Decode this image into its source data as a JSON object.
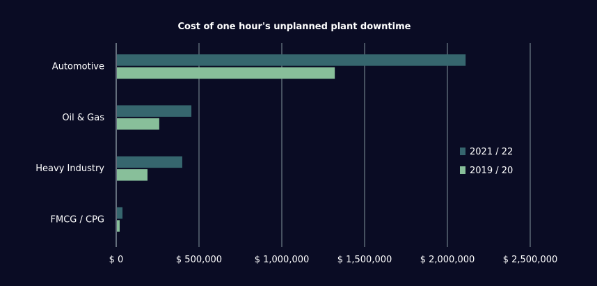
{
  "chart_data": {
    "type": "bar",
    "orientation": "horizontal",
    "title": "Cost of one hour's unplanned plant downtime",
    "categories": [
      "Automotive",
      "Oil & Gas",
      "Heavy Industry",
      "FMCG / CPG"
    ],
    "series": [
      {
        "name": "2021 / 22",
        "color": "#36666e",
        "values": [
          2110000,
          454000,
          399000,
          38000
        ]
      },
      {
        "name": "2019 / 20",
        "color": "#88bf9a",
        "values": [
          1320000,
          260000,
          189000,
          21000
        ]
      }
    ],
    "xlim": [
      0,
      2500000
    ],
    "xticks": [
      0,
      500000,
      1000000,
      1500000,
      2000000,
      2500000
    ],
    "xtick_labels": [
      "$ 0",
      "$ 500,000",
      "$ 1,000,000",
      "$ 1,500,000",
      "$ 2,000,000",
      "$ 2,500,000"
    ],
    "grid": "vertical",
    "legend_position": "right",
    "background": "#0a0c24"
  }
}
